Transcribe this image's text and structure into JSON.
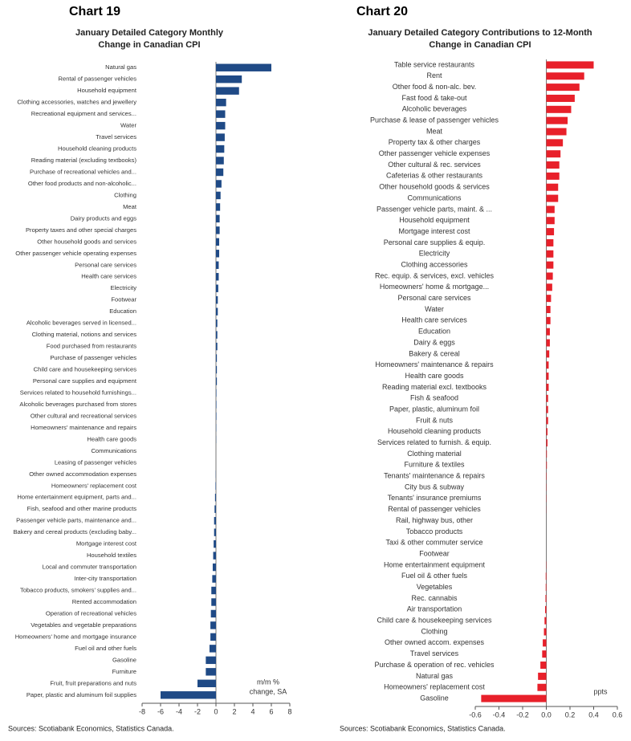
{
  "chart_data": [
    {
      "type": "bar",
      "orientation": "horizontal",
      "chart_label": "Chart 19",
      "title": [
        "January Detailed Category Monthly",
        "Change in Canadian CPI"
      ],
      "annotation": [
        "m/m %",
        "change, SA"
      ],
      "source": "Sources: Scotiabank Economics, Statistics Canada.",
      "color": "#1f4a86",
      "xlim": [
        -8,
        8
      ],
      "xticks": [
        -8,
        -6,
        -4,
        -2,
        0,
        2,
        4,
        6,
        8
      ],
      "categories": [
        "Natural gas",
        "Rental of passenger vehicles",
        "Household equipment",
        "Clothing accessories, watches and jewellery",
        "Recreational equipment and services...",
        "Water",
        "Travel services",
        "Household cleaning products",
        "Reading material (excluding textbooks)",
        "Purchase of recreational vehicles and...",
        "Other food products and non-alcoholic...",
        "Clothing",
        "Meat",
        "Dairy products and eggs",
        "Property taxes and other special charges",
        "Other household goods and services",
        "Other passenger vehicle operating expenses",
        "Personal care services",
        "Health care services",
        "Electricity",
        "Footwear",
        "Education",
        "Alcoholic beverages served in licensed...",
        "Clothing material, notions and services",
        "Food purchased from restaurants",
        "Purchase of passenger vehicles",
        "Child care and housekeeping services",
        "Personal care supplies and equipment",
        "Services related to household furnishings...",
        "Alcoholic beverages purchased from stores",
        "Other cultural and recreational services",
        "Homeowners' maintenance and repairs",
        "Health care goods",
        "Communications",
        "Leasing of passenger vehicles",
        "Other owned accommodation expenses",
        "Homeowners' replacement cost",
        "Home entertainment equipment, parts and...",
        "Fish, seafood and other marine products",
        "Passenger vehicle parts, maintenance and...",
        "Bakery and cereal products (excluding baby...",
        "Mortgage interest cost",
        "Household textiles",
        "Local and commuter transportation",
        "Inter-city transportation",
        "Tobacco products, smokers' supplies and...",
        "Rented accommodation",
        "Operation of recreational vehicles",
        "Vegetables and vegetable preparations",
        "Homeowners' home and mortgage insurance",
        "Fuel oil and other fuels",
        "Gasoline",
        "Furniture",
        "Fruit, fruit preparations and nuts",
        "Paper, plastic and aluminum foil supplies"
      ],
      "values": [
        6.0,
        2.8,
        2.5,
        1.1,
        1.0,
        1.0,
        0.95,
        0.9,
        0.85,
        0.8,
        0.6,
        0.5,
        0.45,
        0.4,
        0.4,
        0.35,
        0.35,
        0.3,
        0.3,
        0.25,
        0.2,
        0.2,
        0.15,
        0.15,
        0.15,
        0.1,
        0.1,
        0.1,
        0.05,
        0.05,
        0.05,
        0.03,
        0.02,
        0,
        0,
        -0.02,
        -0.05,
        -0.1,
        -0.15,
        -0.2,
        -0.2,
        -0.25,
        -0.3,
        -0.35,
        -0.4,
        -0.5,
        -0.5,
        -0.55,
        -0.6,
        -0.6,
        -0.7,
        -1.1,
        -1.1,
        -2.0,
        -6.0
      ]
    },
    {
      "type": "bar",
      "orientation": "horizontal",
      "chart_label": "Chart 20",
      "title": [
        "January Detailed Category Contributions to 12-Month",
        "Change in Canadian CPI"
      ],
      "annotation": [
        "ppts"
      ],
      "source": "Sources: Scotiabank Economics, Statistics Canada.",
      "color": "#e8202a",
      "xlim": [
        -0.6,
        0.6
      ],
      "xticks": [
        -0.6,
        -0.4,
        -0.2,
        {
          "value": 0,
          "label": "0.0"
        },
        0.2,
        0.4,
        0.6
      ],
      "categories": [
        "Table service restaurants",
        "Rent",
        "Other food & non-alc. bev.",
        "Fast food & take-out",
        "Alcoholic beverages",
        "Purchase & lease of passenger vehicles",
        "Meat",
        "Property tax & other charges",
        "Other passenger vehicle expenses",
        "Other cultural & rec. services",
        "Cafeterias & other restaurants",
        "Other household goods & services",
        "Communications",
        "Passenger vehicle parts, maint. & ...",
        "Household equipment",
        "Mortgage interest cost",
        "Personal care supplies & equip.",
        "Electricity",
        "Clothing accessories",
        "Rec. equip. & services, excl. vehicles",
        "Homeowners' home & mortgage...",
        "Personal care services",
        "Water",
        "Health care services",
        "Education",
        "Dairy & eggs",
        "Bakery & cereal",
        "Homeowners' maintenance & repairs",
        "Health care goods",
        "Reading material excl. textbooks",
        "Fish & seafood",
        "Paper, plastic, aluminum foil",
        "Fruit & nuts",
        "Household cleaning products",
        "Services related to furnish. & equip.",
        "Clothing material",
        "Furniture & textiles",
        "Tenants' maintenance & repairs",
        "City bus & subway",
        "Tenants' insurance premiums",
        "Rental of passenger vehicles",
        "Rail, highway bus, other",
        "Tobacco products",
        "Taxi & other commuter service",
        "Footwear",
        "Home entertainment equipment",
        "Fuel oil & other fuels",
        "Vegetables",
        "Rec. cannabis",
        "Air transportation",
        "Child care & housekeeping services",
        "Clothing",
        "Other owned accom. expenses",
        "Travel services",
        "Purchase & operation of rec. vehicles",
        "Natural gas",
        "Homeowners' replacement cost",
        "Gasoline"
      ],
      "values": [
        0.4,
        0.32,
        0.28,
        0.24,
        0.21,
        0.18,
        0.17,
        0.14,
        0.12,
        0.11,
        0.11,
        0.1,
        0.1,
        0.07,
        0.07,
        0.065,
        0.06,
        0.06,
        0.06,
        0.055,
        0.05,
        0.04,
        0.035,
        0.035,
        0.03,
        0.03,
        0.025,
        0.02,
        0.02,
        0.02,
        0.015,
        0.015,
        0.015,
        0.01,
        0.01,
        0.005,
        0.005,
        0.003,
        0.002,
        0.002,
        0.001,
        0,
        0,
        0,
        0,
        -0.002,
        -0.005,
        -0.005,
        -0.007,
        -0.01,
        -0.015,
        -0.02,
        -0.03,
        -0.035,
        -0.05,
        -0.07,
        -0.075,
        -0.55
      ]
    }
  ]
}
